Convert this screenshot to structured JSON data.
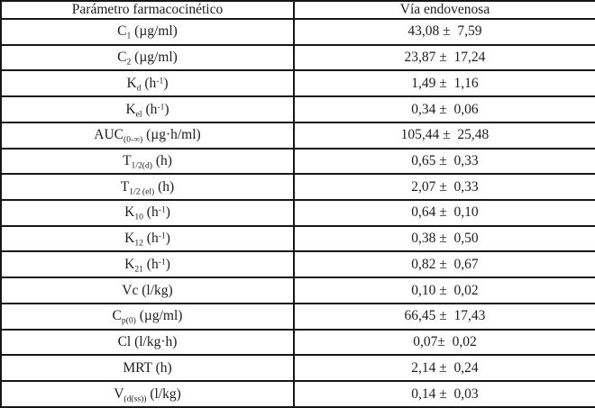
{
  "table": {
    "header": {
      "param": "Parámetro farmacocinético",
      "value": "Vía endovenosa"
    },
    "rows": [
      {
        "param": [
          {
            "v": "C"
          },
          {
            "sub": "1"
          },
          {
            "v": " (µg/ml)"
          }
        ],
        "value": "43,08 ±  7,59"
      },
      {
        "param": [
          {
            "v": "C"
          },
          {
            "sub": "2"
          },
          {
            "v": " (µg/ml)"
          }
        ],
        "value": "23,87 ±  17,24"
      },
      {
        "param": [
          {
            "v": "K"
          },
          {
            "sub": "d"
          },
          {
            "v": " (h"
          },
          {
            "sup": "-1"
          },
          {
            "v": ")"
          }
        ],
        "value": "1,49 ±  1,16"
      },
      {
        "param": [
          {
            "v": "K"
          },
          {
            "sub": "el"
          },
          {
            "v": " (h"
          },
          {
            "sup": "-1"
          },
          {
            "v": ")"
          }
        ],
        "value": "0,34 ±  0,06"
      },
      {
        "param": [
          {
            "v": "AUC"
          },
          {
            "sub": "(0-∞)"
          },
          {
            "v": " (µg·h/ml)"
          }
        ],
        "value": "105,44 ±  25,48"
      },
      {
        "param": [
          {
            "v": "T"
          },
          {
            "sub": "1/2(d)"
          },
          {
            "v": " (h)"
          }
        ],
        "value": "0,65 ±  0,33"
      },
      {
        "param": [
          {
            "v": "T"
          },
          {
            "sub": "1/2 (el)"
          },
          {
            "v": " (h)"
          }
        ],
        "value": "2,07 ±  0,33"
      },
      {
        "param": [
          {
            "v": "K"
          },
          {
            "sub": "10"
          },
          {
            "v": " (h"
          },
          {
            "sup": "-1"
          },
          {
            "v": ")"
          }
        ],
        "value": "0,64 ±  0,10"
      },
      {
        "param": [
          {
            "v": "K"
          },
          {
            "sub": "12"
          },
          {
            "v": " (h"
          },
          {
            "sup": "-1"
          },
          {
            "v": ")"
          }
        ],
        "value": "0,38 ±  0,50"
      },
      {
        "param": [
          {
            "v": "K"
          },
          {
            "sub": "21"
          },
          {
            "v": " (h"
          },
          {
            "sup": "-1"
          },
          {
            "v": ")"
          }
        ],
        "value": "0,82 ±  0,67"
      },
      {
        "param": [
          {
            "v": "Vc (l/kg)"
          }
        ],
        "value": "0,10 ±  0,02"
      },
      {
        "param": [
          {
            "v": "C"
          },
          {
            "sub": "p(0)"
          },
          {
            "v": " (µg/ml)"
          }
        ],
        "value": "66,45 ±  17,43"
      },
      {
        "param": [
          {
            "v": "Cl (l/kg·h)"
          }
        ],
        "value": "0,07±  0,02"
      },
      {
        "param": [
          {
            "v": "MRT (h)"
          }
        ],
        "value": "2,14 ±  0,24"
      },
      {
        "param": [
          {
            "v": "V"
          },
          {
            "sub": "(d(ss))"
          },
          {
            "v": " (l/kg)"
          }
        ],
        "value": "0,14 ±  0,03"
      }
    ]
  },
  "colors": {
    "border": "#161616",
    "text": "#1d1d1d",
    "background": "#ffffff"
  }
}
